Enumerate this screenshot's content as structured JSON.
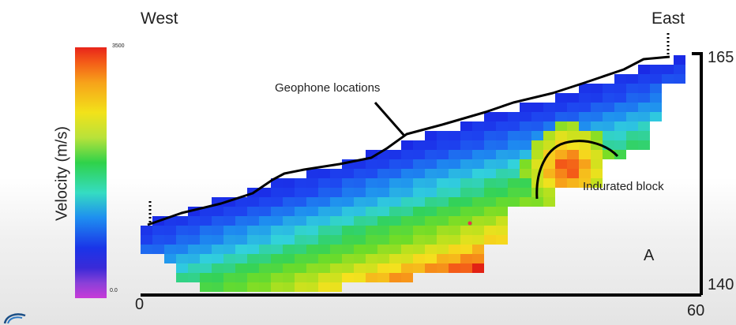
{
  "figure": {
    "west_label": "West",
    "east_label": "East",
    "colorbar": {
      "title": "Velocity (m/s)",
      "max_label": "3500",
      "min_label": "0.0"
    },
    "annotations": {
      "geophone": "Geophone locations",
      "block": "Indurated block",
      "panel": "A"
    },
    "x_axis": {
      "min_label": "0",
      "max_label": "60"
    },
    "y_axis": {
      "top_label": "165",
      "bottom_label": "140"
    }
  },
  "colors": {
    "surface_line": "#000000",
    "point_marker": "#e8344a"
  },
  "icons": {
    "corner_logo": "logo-swirl-icon"
  }
}
